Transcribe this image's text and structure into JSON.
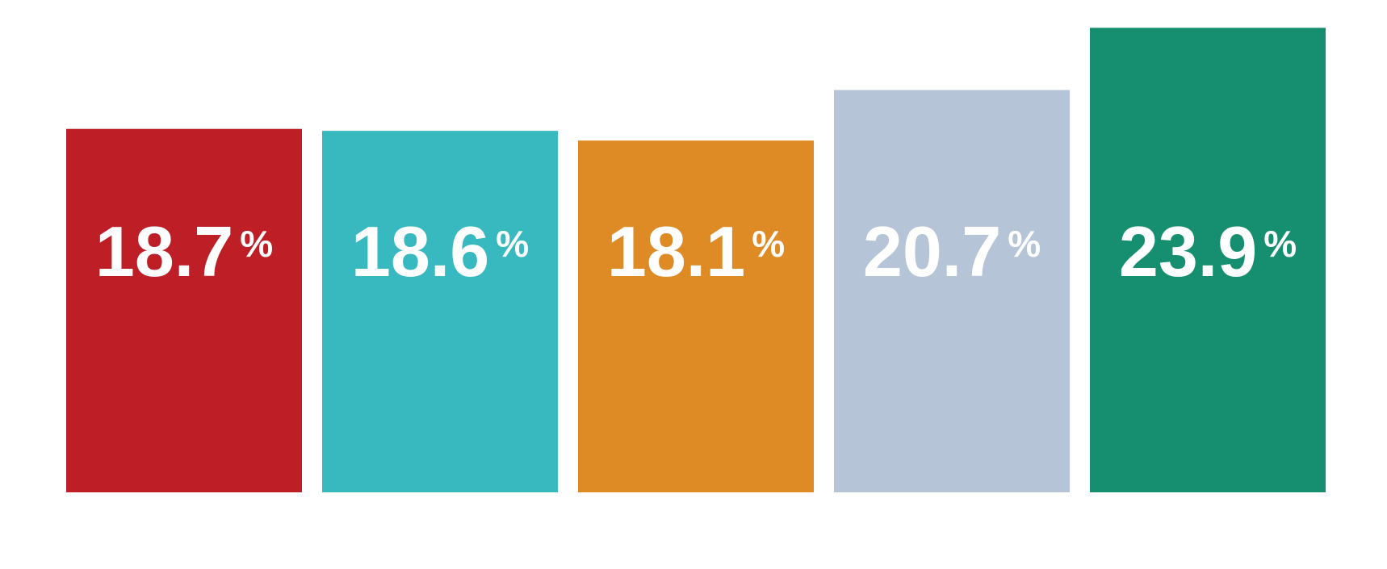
{
  "chart_data": {
    "type": "bar",
    "categories": [
      null,
      null,
      null,
      null,
      null
    ],
    "values": [
      18.7,
      18.6,
      18.1,
      20.7,
      23.9
    ],
    "value_labels": [
      "18.7%",
      "18.6%",
      "18.1%",
      "20.7%",
      "23.9%"
    ],
    "colors": [
      "#be1e26",
      "#37b9bf",
      "#de8b26",
      "#b6c4d7",
      "#168f70"
    ],
    "ylim": [
      0,
      25
    ]
  }
}
